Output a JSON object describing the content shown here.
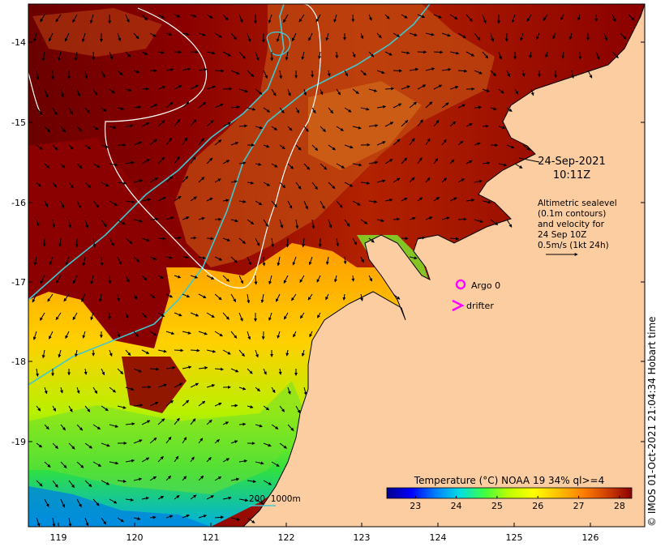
{
  "map": {
    "date_line": "24-Sep-2021",
    "time_line": "10:11Z",
    "altimetry_lines": [
      "Altimetric sealevel",
      "(0.1m contours)",
      "and velocity for",
      "24 Sep 10Z",
      "0.5m/s (1kt 24h)"
    ],
    "argo_label": "Argo 0",
    "drifter_label": "drifter",
    "bathymetry_scale_label": "200  1000m",
    "colorbar_title": "Temperature (°C) NOAA 19 34% ql>=4",
    "colorbar_ticks": [
      "23",
      "24",
      "25",
      "26",
      "27",
      "28"
    ],
    "colorbar_range": [
      22.3,
      28.3
    ],
    "colorbar_stops": [
      "#00008b",
      "#0000ff",
      "#0080ff",
      "#00e0e0",
      "#40ff40",
      "#c0ff00",
      "#ffff00",
      "#ffc000",
      "#ff8000",
      "#d04000",
      "#8b0000"
    ],
    "credit": "© IMOS 01-Oct-2021 21:04:34 Hobart time",
    "lon_ticks": [
      "119",
      "120",
      "121",
      "122",
      "123",
      "124",
      "125",
      "126"
    ],
    "lat_ticks": [
      "-14",
      "-15",
      "-16",
      "-17",
      "-18",
      "-19"
    ],
    "lon_range": [
      118.6,
      126.7
    ],
    "lat_range": [
      -13.5,
      -20.1
    ],
    "colors": {
      "land": "#fccda1",
      "contour_1000m": "#40c8d0",
      "contour_200m": "#ffffff",
      "markers": "#ff00ff",
      "warm_water": "#8b0000"
    },
    "icons": {
      "argo": "argo-float-circle-icon",
      "drifter": "drifter-chevron-icon"
    }
  }
}
